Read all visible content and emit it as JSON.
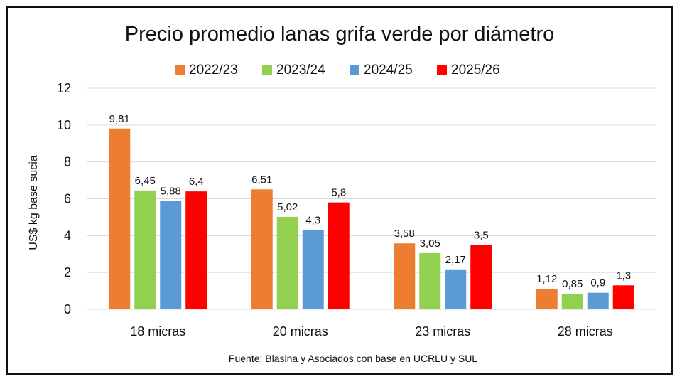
{
  "chart_data": {
    "type": "bar",
    "title": "Precio promedio lanas grifa verde por diámetro",
    "ylabel": "US$ kg base sucia",
    "xlabel": "",
    "ylim": [
      0,
      12
    ],
    "yticks": [
      "0",
      "2",
      "4",
      "6",
      "8",
      "10",
      "12"
    ],
    "grid": true,
    "legend_position": "top",
    "categories": [
      "18 micras",
      "20 micras",
      "23 micras",
      "28 micras"
    ],
    "series": [
      {
        "name": "2022/23",
        "color": "#ED7D31",
        "values": [
          9.81,
          6.51,
          3.58,
          1.12
        ],
        "labels": [
          "9,81",
          "6,51",
          "3,58",
          "1,12"
        ]
      },
      {
        "name": "2023/24",
        "color": "#92D050",
        "values": [
          6.45,
          5.02,
          3.05,
          0.85
        ],
        "labels": [
          "6,45",
          "5,02",
          "3,05",
          "0,85"
        ]
      },
      {
        "name": "2024/25",
        "color": "#5B9BD5",
        "values": [
          5.88,
          4.3,
          2.17,
          0.9
        ],
        "labels": [
          "5,88",
          "4,3",
          "2,17",
          "0,9"
        ]
      },
      {
        "name": "2025/26",
        "color": "#FF0000",
        "values": [
          6.4,
          5.8,
          3.5,
          1.3
        ],
        "labels": [
          "6,4",
          "5,8",
          "3,5",
          "1,3"
        ]
      }
    ],
    "source": "Fuente: Blasina y Asociados con base en UCRLU y SUL"
  }
}
